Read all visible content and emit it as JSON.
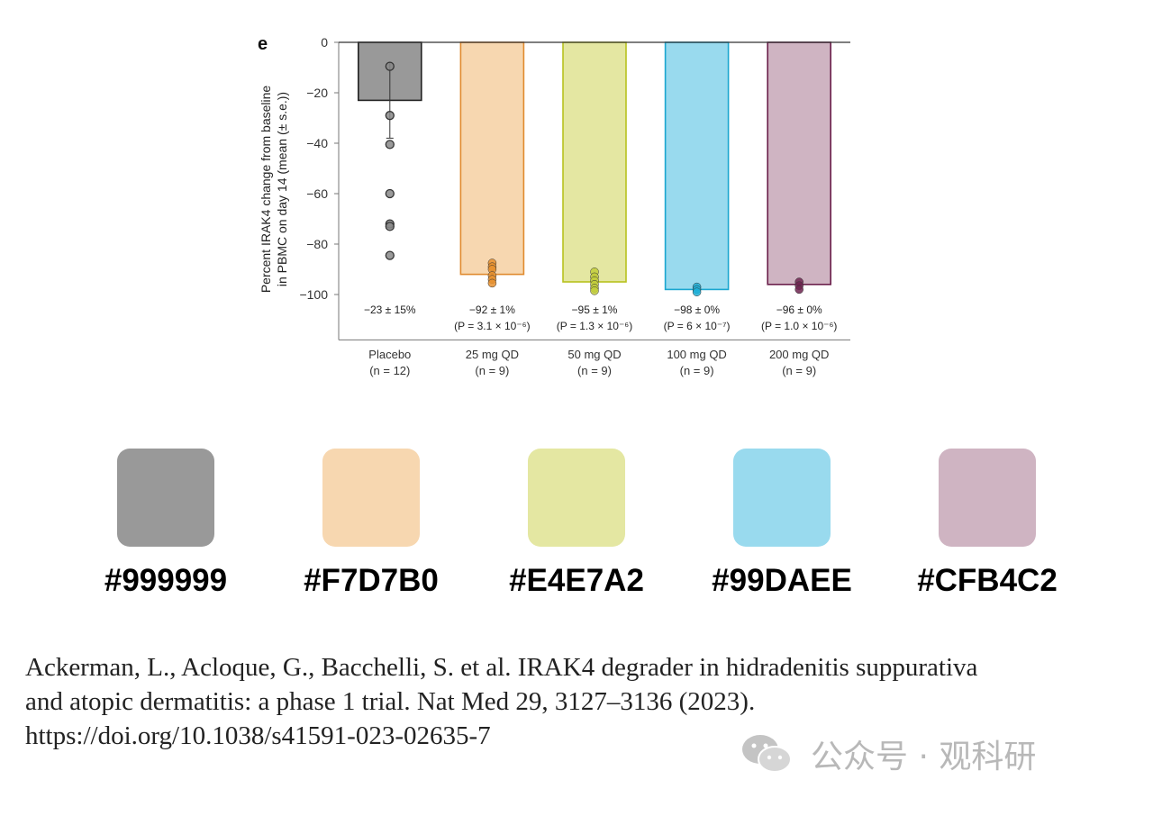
{
  "chart_data": {
    "type": "bar",
    "panel_label": "e",
    "ylabel_line1": "Percent IRAK4 change from baseline",
    "ylabel_line2": "in PBMC on day 14 (mean (± s.e.))",
    "ylim": [
      -118,
      0
    ],
    "yticks": [
      0,
      -20,
      -40,
      -60,
      -80,
      -100
    ],
    "categories": [
      {
        "name": "Placebo",
        "n": "(n = 12)",
        "value": -23,
        "stat": "−23 ± 15%",
        "pval": "",
        "color": "#999999",
        "edge": "#222222",
        "error": 15,
        "points": [
          -9.5,
          -29,
          -40.5,
          -60,
          -72,
          -73,
          -84.5
        ],
        "point_color": "#888888"
      },
      {
        "name": "25 mg QD",
        "n": "(n = 9)",
        "value": -92,
        "stat": "−92 ± 1%",
        "pval": "(P = 3.1 × 10⁻⁶)",
        "color": "#F7D7B0",
        "edge": "#e08a2e",
        "error": 1,
        "points": [
          -87.5,
          -89,
          -90,
          -92.5,
          -94,
          -95.5
        ],
        "point_color": "#e8902e"
      },
      {
        "name": "50 mg QD",
        "n": "(n = 9)",
        "value": -95,
        "stat": "−95 ± 1%",
        "pval": "(P = 1.3 × 10⁻⁶)",
        "color": "#E4E7A2",
        "edge": "#b8c21e",
        "error": 1,
        "points": [
          -91,
          -93,
          -94.5,
          -96,
          -97.5,
          -98.5
        ],
        "point_color": "#c2cc3a"
      },
      {
        "name": "100 mg QD",
        "n": "(n = 9)",
        "value": -98,
        "stat": "−98 ± 0%",
        "pval": "(P = 6 × 10⁻⁷)",
        "color": "#99DAEE",
        "edge": "#1aa6cf",
        "error": 0,
        "points": [
          -97,
          -98,
          -99
        ],
        "point_color": "#1fb0d8"
      },
      {
        "name": "200 mg QD",
        "n": "(n = 9)",
        "value": -96,
        "stat": "−96 ± 0%",
        "pval": "(P = 1.0 × 10⁻⁶)",
        "color": "#CFB4C2",
        "edge": "#6a1f4a",
        "error": 0,
        "points": [
          -95,
          -96.5,
          -98
        ],
        "point_color": "#6e2450"
      }
    ]
  },
  "swatches": [
    {
      "hex": "#999999",
      "color": "#999999"
    },
    {
      "hex": "#F7D7B0",
      "color": "#F7D7B0"
    },
    {
      "hex": "#E4E7A2",
      "color": "#E4E7A2"
    },
    {
      "hex": "#99DAEE",
      "color": "#99DAEE"
    },
    {
      "hex": "#CFB4C2",
      "color": "#CFB4C2"
    }
  ],
  "citation": {
    "line1": "Ackerman, L., Acloque, G., Bacchelli, S. et al. IRAK4 degrader in hidradenitis suppurativa",
    "line2": "and atopic dermatitis: a phase 1 trial. Nat Med 29, 3127–3136 (2023).",
    "line3": "https://doi.org/10.1038/s41591-023-02635-7"
  },
  "watermark": {
    "text": "公众号 · 观科研",
    "icon": "wechat-icon"
  }
}
